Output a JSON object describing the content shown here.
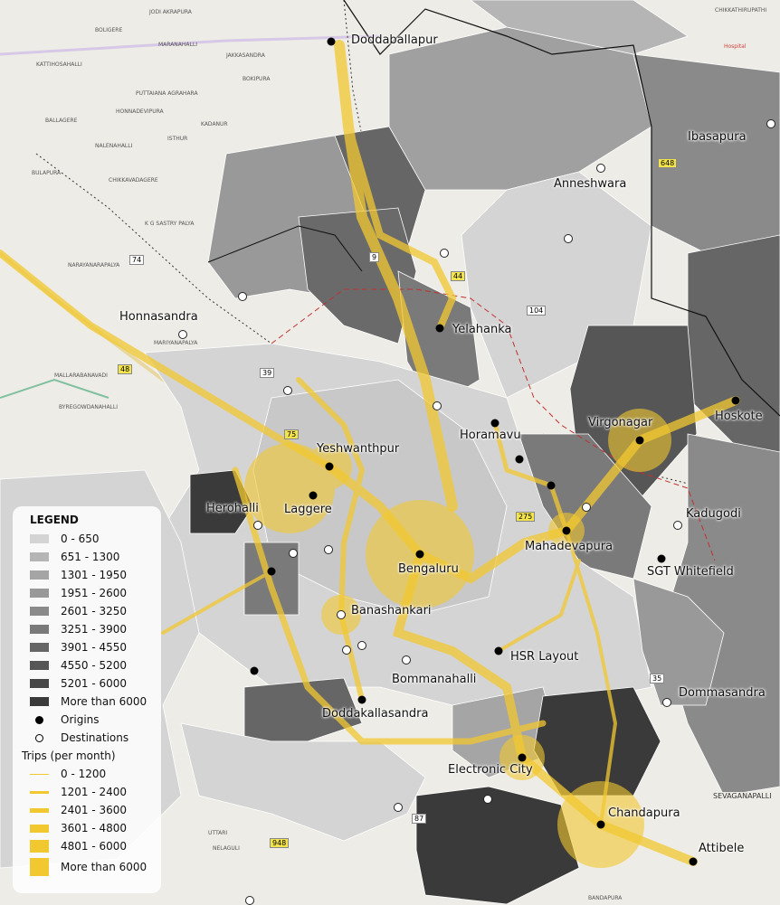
{
  "legend": {
    "title": "LEGEND",
    "zones": [
      {
        "label": "0 - 650",
        "color": "#d4d4d4"
      },
      {
        "label": "651 - 1300",
        "color": "#b5b5b5"
      },
      {
        "label": "1301 - 1950",
        "color": "#a5a5a5"
      },
      {
        "label": "1951 - 2600",
        "color": "#999999"
      },
      {
        "label": "2601 - 3250",
        "color": "#8a8a8a"
      },
      {
        "label": "3251 - 3900",
        "color": "#7a7a7a"
      },
      {
        "label": "3901 - 4550",
        "color": "#666666"
      },
      {
        "label": "4550 - 5200",
        "color": "#565656"
      },
      {
        "label": "5201 - 6000",
        "color": "#474747"
      },
      {
        "label": "More than 6000",
        "color": "#3a3a3a"
      }
    ],
    "origins_label": "Origins",
    "destinations_label": "Destinations",
    "trips_title": "Trips (per month)",
    "trips": [
      {
        "label": "0 - 1200",
        "thickness_rank": 1
      },
      {
        "label": "1201 - 2400",
        "thickness_rank": 2
      },
      {
        "label": "2401 - 3600",
        "thickness_rank": 3
      },
      {
        "label": "3601 - 4800",
        "thickness_rank": 4
      },
      {
        "label": "4801 - 6000",
        "thickness_rank": 5
      },
      {
        "label": "More than 6000",
        "thickness_rank": 6
      }
    ],
    "flow_color": "#f2c830"
  },
  "places": [
    {
      "name": "Doddaballapur",
      "type": "origin"
    },
    {
      "name": "Anneshwara",
      "type": "destination"
    },
    {
      "name": "Ibasapura",
      "type": "destination"
    },
    {
      "name": "Yelahanka",
      "type": "origin"
    },
    {
      "name": "Honnasandra",
      "type": "destination"
    },
    {
      "name": "Horamavu",
      "type": "origin"
    },
    {
      "name": "Virgonagar",
      "type": "origin"
    },
    {
      "name": "Hoskote",
      "type": "origin"
    },
    {
      "name": "Yeshwanthpur",
      "type": "origin"
    },
    {
      "name": "Herohalli",
      "type": "destination"
    },
    {
      "name": "Laggere",
      "type": "origin"
    },
    {
      "name": "Kadugodi",
      "type": "destination"
    },
    {
      "name": "Mahadevapura",
      "type": "origin"
    },
    {
      "name": "Bengaluru",
      "type": "origin"
    },
    {
      "name": "SGT Whitefield",
      "type": "origin"
    },
    {
      "name": "Banashankari",
      "type": "destination"
    },
    {
      "name": "HSR Layout",
      "type": "origin"
    },
    {
      "name": "Bommanahalli",
      "type": "destination"
    },
    {
      "name": "Dommasandra",
      "type": "destination"
    },
    {
      "name": "Doddakallasandra",
      "type": "origin"
    },
    {
      "name": "Electronic City",
      "type": "origin"
    },
    {
      "name": "Chandapura",
      "type": "origin"
    },
    {
      "name": "Attibele",
      "type": "origin"
    }
  ],
  "road_shields": [
    "9",
    "44",
    "104",
    "74",
    "39",
    "75",
    "48",
    "275",
    "648",
    "35",
    "87",
    "948"
  ],
  "base_labels": [
    "JODI AKRAPURA",
    "BOLIGERE",
    "MARANAHALLI",
    "KATTIHOSAHALLI",
    "JAKKASANDRA",
    "BOKIPURA",
    "PUTTAIANA AGRAHARA",
    "HONNADEVIPURA",
    "BALLAGERE",
    "KADANUR",
    "ISTHUR",
    "NALENAHALLI",
    "BULAPURA",
    "CHIKKAVADAGERE",
    "K G SASTRY PALYA",
    "NARAYANARAPALYA",
    "MARIYANAPALYA",
    "MALLARABANAVADI",
    "BYREGOWDANAHALLI",
    "CHIKKATHIRUPATHI",
    "NELAGULI",
    "UTTARI",
    "BANDAPURA",
    "SEVAGANAPALLI"
  ],
  "hospital_label": "Hospital"
}
